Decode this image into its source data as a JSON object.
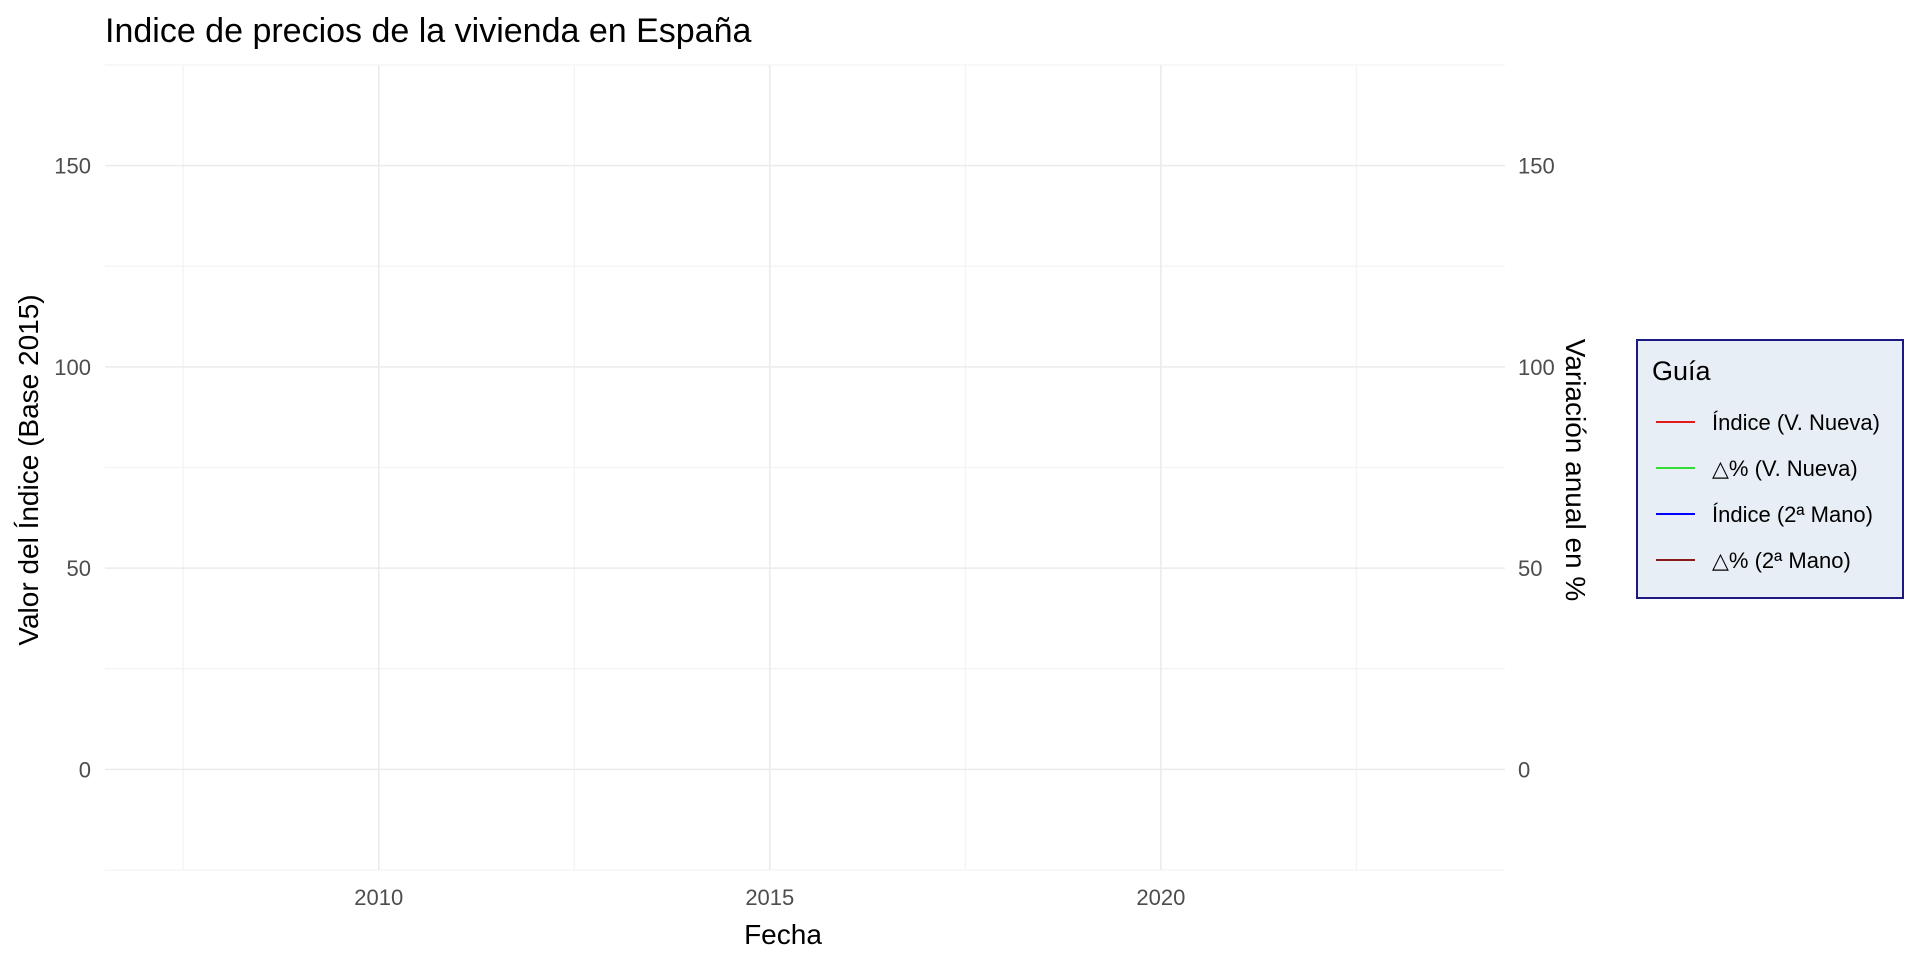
{
  "chart_data": {
    "type": "line",
    "title": "Indice de precios de la vivienda en España",
    "xlabel": "Fecha",
    "ylabel": "Valor del Índice (Base 2015)",
    "ylabel_right": "Variación anual en %",
    "xlim": [
      2006.5,
      2024.4
    ],
    "ylim": [
      -25,
      175
    ],
    "x_ticks": [
      2010,
      2015,
      2020
    ],
    "x_minor_ticks": [
      2007.5,
      2012.5,
      2017.5,
      2022.5
    ],
    "y_ticks": [
      0,
      50,
      100,
      150
    ],
    "y_minor_ticks": [
      -25,
      25,
      75,
      125,
      175
    ],
    "y_ticks_right": [
      0,
      50,
      100,
      150
    ],
    "grid": true,
    "legend": {
      "title": "Guía",
      "position": "right",
      "background": "#e8eef5",
      "border": "#1a1a80",
      "entries": [
        {
          "label": "Índice (V. Nueva)",
          "color": "#e31a1c"
        },
        {
          "label": "△% (V. Nueva)",
          "color": "#33dd33"
        },
        {
          "label": "Índice (2ª Mano)",
          "color": "#0000ff"
        },
        {
          "label": "△% (2ª Mano)",
          "color": "#8b1a1a"
        }
      ]
    },
    "series": [
      {
        "name": "Índice (V. Nueva)",
        "color": "#e31a1c",
        "x": [],
        "values": []
      },
      {
        "name": "△% (V. Nueva)",
        "color": "#33dd33",
        "x": [],
        "values": []
      },
      {
        "name": "Índice (2ª Mano)",
        "color": "#0000ff",
        "x": [],
        "values": []
      },
      {
        "name": "△% (2ª Mano)",
        "color": "#8b1a1a",
        "x": [],
        "values": []
      }
    ]
  }
}
